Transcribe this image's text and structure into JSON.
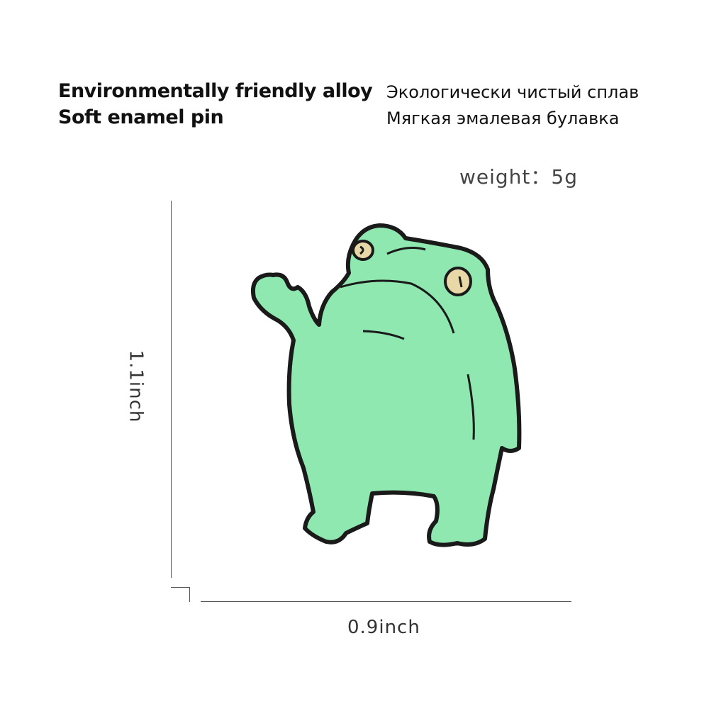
{
  "header": {
    "english_line1": "Environmentally friendly alloy",
    "english_line2": "Soft enamel pin",
    "russian_line1": "Экологически чистый сплав",
    "russian_line2": "Мягкая эмалевая булавка"
  },
  "specs": {
    "weight": "weight：5g",
    "height": "1.1inch",
    "width": "0.9inch"
  },
  "colors": {
    "pin_green": "#8ee8b0",
    "outline": "#1a1a1a",
    "eye": "#e8d8a8"
  }
}
